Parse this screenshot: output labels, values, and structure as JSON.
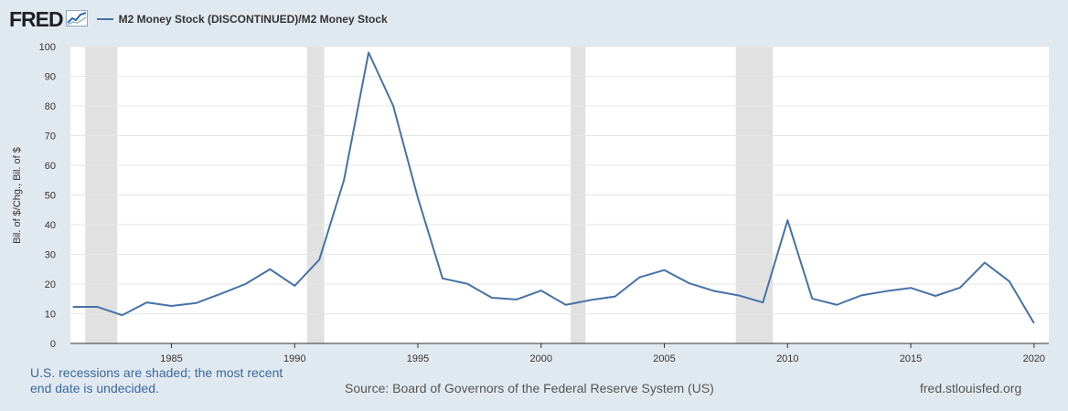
{
  "header": {
    "logo": "FRED",
    "legend_label": "M2 Money Stock (DISCONTINUED)/M2 Money Stock",
    "series_color": "#4572a7"
  },
  "footer": {
    "note": "U.S. recessions are shaded; the most recent end date is undecided.",
    "source": "Source: Board of Governors of the Federal Reserve System (US)",
    "url": "fred.stlouisfed.org"
  },
  "chart_data": {
    "type": "line",
    "title": "",
    "ylabel": "Bil. of $/Chg., Bil. of $",
    "xlabel": "",
    "xlim": [
      1980.9,
      2020.6
    ],
    "ylim": [
      0,
      100
    ],
    "yticks": [
      0,
      10,
      20,
      30,
      40,
      50,
      60,
      70,
      80,
      90,
      100
    ],
    "xticks": [
      1985,
      1990,
      1995,
      2000,
      2005,
      2010,
      2015,
      2020
    ],
    "recessions": [
      [
        1981.5,
        1982.8
      ],
      [
        1990.5,
        1991.2
      ],
      [
        2001.2,
        2001.8
      ],
      [
        2007.9,
        2009.4
      ]
    ],
    "recession_color": "#e1e1e1",
    "series": [
      {
        "name": "M2 Money Stock (DISCONTINUED)/M2 Money Stock",
        "x": [
          1981,
          1982,
          1983,
          1984,
          1985,
          1986,
          1987,
          1988,
          1989,
          1990,
          1991,
          1992,
          1993,
          1994,
          1995,
          1996,
          1997,
          1998,
          1999,
          2000,
          2001,
          2002,
          2003,
          2004,
          2005,
          2006,
          2007,
          2008,
          2009,
          2010,
          2011,
          2012,
          2013,
          2014,
          2015,
          2016,
          2017,
          2018,
          2019,
          2020
        ],
        "values": [
          12.3,
          12.3,
          9.5,
          13.8,
          12.6,
          13.6,
          16.7,
          20.0,
          25.0,
          19.4,
          28.2,
          55.0,
          98.0,
          80.0,
          49.0,
          21.9,
          20.1,
          15.4,
          14.8,
          17.8,
          13.0,
          14.6,
          15.8,
          22.3,
          24.7,
          20.3,
          17.7,
          16.2,
          13.8,
          41.5,
          15.1,
          13.0,
          16.2,
          17.6,
          18.7,
          16.0,
          18.8,
          27.2,
          20.9,
          6.8
        ]
      }
    ]
  }
}
